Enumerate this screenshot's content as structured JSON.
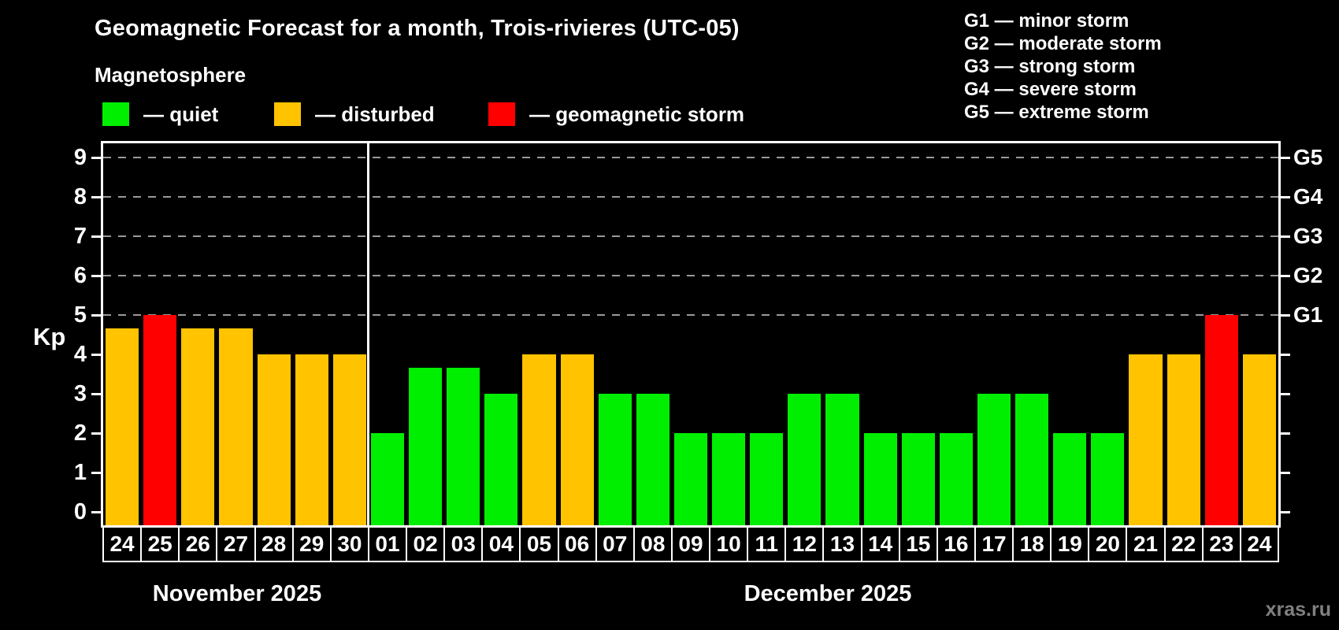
{
  "title": "Geomagnetic Forecast for a month, Trois-rivieres (UTC-05)",
  "subtitle": "Magnetosphere",
  "legend": {
    "quiet": {
      "label": "— quiet",
      "color": "#00ef00"
    },
    "disturbed": {
      "label": "— disturbed",
      "color": "#ffc300"
    },
    "storm": {
      "label": "— geomagnetic storm",
      "color": "#ff0000"
    }
  },
  "g_legend": [
    "G1 — minor storm",
    "G2 — moderate storm",
    "G3 — strong storm",
    "G4 — severe storm",
    "G5 — extreme storm"
  ],
  "watermark": "xras.ru",
  "chart_data": {
    "type": "bar",
    "ylabel": "Kp",
    "ylim": [
      0,
      9
    ],
    "yticks": [
      "0",
      "1",
      "2",
      "3",
      "4",
      "5",
      "6",
      "7",
      "8",
      "9"
    ],
    "right_axis_labels": [
      {
        "kp": 5,
        "text": "G1"
      },
      {
        "kp": 6,
        "text": "G2"
      },
      {
        "kp": 7,
        "text": "G3"
      },
      {
        "kp": 8,
        "text": "G4"
      },
      {
        "kp": 9,
        "text": "G5"
      }
    ],
    "grid_levels": [
      5,
      6,
      7,
      8,
      9
    ],
    "months": [
      {
        "label": "November 2025",
        "days": 7
      },
      {
        "label": "December 2025",
        "days": 24
      }
    ],
    "bars": [
      {
        "day": "24",
        "value": 4.67,
        "status": "disturbed"
      },
      {
        "day": "25",
        "value": 5,
        "status": "storm"
      },
      {
        "day": "26",
        "value": 4.67,
        "status": "disturbed"
      },
      {
        "day": "27",
        "value": 4.67,
        "status": "disturbed"
      },
      {
        "day": "28",
        "value": 4,
        "status": "disturbed"
      },
      {
        "day": "29",
        "value": 4,
        "status": "disturbed"
      },
      {
        "day": "30",
        "value": 4,
        "status": "disturbed"
      },
      {
        "day": "01",
        "value": 2,
        "status": "quiet"
      },
      {
        "day": "02",
        "value": 3.67,
        "status": "quiet"
      },
      {
        "day": "03",
        "value": 3.67,
        "status": "quiet"
      },
      {
        "day": "04",
        "value": 3,
        "status": "quiet"
      },
      {
        "day": "05",
        "value": 4,
        "status": "disturbed"
      },
      {
        "day": "06",
        "value": 4,
        "status": "disturbed"
      },
      {
        "day": "07",
        "value": 3,
        "status": "quiet"
      },
      {
        "day": "08",
        "value": 3,
        "status": "quiet"
      },
      {
        "day": "09",
        "value": 2,
        "status": "quiet"
      },
      {
        "day": "10",
        "value": 2,
        "status": "quiet"
      },
      {
        "day": "11",
        "value": 2,
        "status": "quiet"
      },
      {
        "day": "12",
        "value": 3,
        "status": "quiet"
      },
      {
        "day": "13",
        "value": 3,
        "status": "quiet"
      },
      {
        "day": "14",
        "value": 2,
        "status": "quiet"
      },
      {
        "day": "15",
        "value": 2,
        "status": "quiet"
      },
      {
        "day": "16",
        "value": 2,
        "status": "quiet"
      },
      {
        "day": "17",
        "value": 3,
        "status": "quiet"
      },
      {
        "day": "18",
        "value": 3,
        "status": "quiet"
      },
      {
        "day": "19",
        "value": 2,
        "status": "quiet"
      },
      {
        "day": "20",
        "value": 2,
        "status": "quiet"
      },
      {
        "day": "21",
        "value": 4,
        "status": "disturbed"
      },
      {
        "day": "22",
        "value": 4,
        "status": "disturbed"
      },
      {
        "day": "23",
        "value": 5,
        "status": "storm"
      },
      {
        "day": "24",
        "value": 4,
        "status": "disturbed"
      }
    ]
  }
}
